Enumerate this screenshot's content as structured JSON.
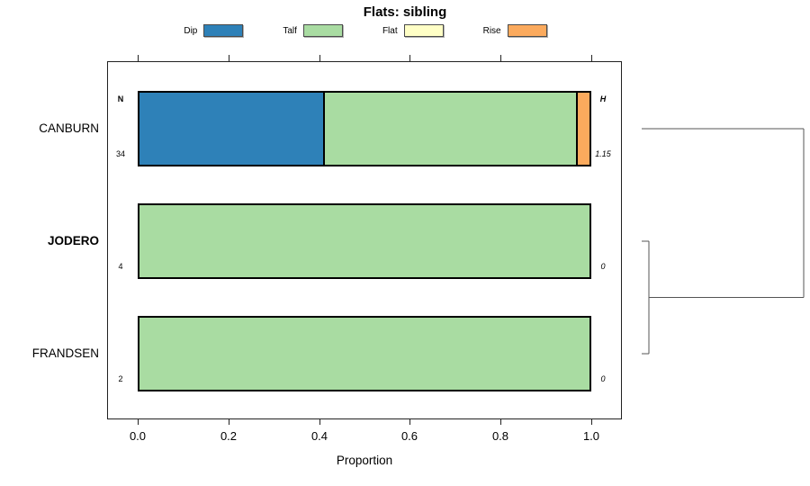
{
  "title": "Flats: sibling",
  "xlabel": "Proportion",
  "legend": {
    "items": [
      {
        "label": "Dip",
        "color": "#2E81B8"
      },
      {
        "label": "Talf",
        "color": "#A9DCA2"
      },
      {
        "label": "Flat",
        "color": "#FFFFC6"
      },
      {
        "label": "Rise",
        "color": "#FBAA5D"
      }
    ]
  },
  "table_headers": {
    "n": "N",
    "h": "H"
  },
  "chart_data": {
    "type": "bar",
    "orientation": "horizontal",
    "stacked": true,
    "title": "Flats: sibling",
    "xlabel": "Proportion",
    "xlim": [
      0,
      1
    ],
    "x_ticks": [
      0,
      0.2,
      0.4,
      0.6,
      0.8,
      1.0
    ],
    "x_tick_labels": [
      "0.0",
      "0.2",
      "0.4",
      "0.6",
      "0.8",
      "1.0"
    ],
    "grid": false,
    "legend_position": "top",
    "series_order": [
      "Dip",
      "Talf",
      "Flat",
      "Rise"
    ],
    "rows": [
      {
        "label": "CANBURN",
        "bold": false,
        "n": "34",
        "h_label": "1.15",
        "proportions": {
          "Dip": 0.412,
          "Talf": 0.559,
          "Flat": 0,
          "Rise": 0.029
        }
      },
      {
        "label": "JODERO",
        "bold": true,
        "n": "4",
        "h_label": "0",
        "proportions": {
          "Dip": 0,
          "Talf": 1,
          "Flat": 0,
          "Rise": 0
        }
      },
      {
        "label": "FRANDSEN",
        "bold": false,
        "n": "2",
        "h_label": "0",
        "proportions": {
          "Dip": 0,
          "Talf": 1,
          "Flat": 0,
          "Rise": 0
        }
      }
    ],
    "dendrogram": {
      "axis": "height",
      "max_height": 1.15,
      "merges": [
        {
          "members": [
            "JODERO",
            "FRANDSEN"
          ],
          "height": 0
        },
        {
          "members": [
            "CANBURN",
            "JODERO+FRANDSEN"
          ],
          "height": 1.15
        }
      ]
    }
  }
}
